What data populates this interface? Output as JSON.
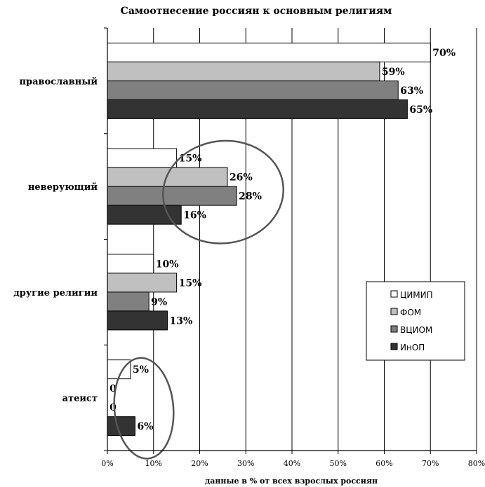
{
  "chart_data": {
    "type": "bar",
    "orientation": "horizontal",
    "title": "Самоотнесение россиян к основным религиям",
    "xlabel": "данные в % от всех взрослых россиян",
    "ylabel": "",
    "xlim": [
      0,
      80
    ],
    "x_ticks": [
      "0%",
      "10%",
      "20%",
      "30%",
      "40%",
      "50%",
      "60%",
      "70%",
      "80%"
    ],
    "grid": true,
    "legend_position": "right",
    "categories": [
      "православный",
      "неверующий",
      "другие религии",
      "атеист"
    ],
    "series": [
      {
        "name": "ЦИМИП",
        "color": "#ffffff",
        "values": [
          70,
          15,
          10,
          5
        ],
        "labels": [
          "70%",
          "15%",
          "10%",
          "5%"
        ]
      },
      {
        "name": "ФОМ",
        "color": "#c0c0c0",
        "values": [
          59,
          26,
          15,
          0
        ],
        "labels": [
          "59%",
          "26%",
          "15%",
          "0"
        ]
      },
      {
        "name": "ВЦИОМ",
        "color": "#808080",
        "values": [
          63,
          28,
          9,
          0
        ],
        "labels": [
          "63%",
          "28%",
          "9%",
          "0"
        ]
      },
      {
        "name": "ИнОП",
        "color": "#333333",
        "values": [
          65,
          16,
          13,
          6
        ],
        "labels": [
          "65%",
          "16%",
          "13%",
          "6%"
        ]
      }
    ],
    "annotations": [
      {
        "type": "ellipse",
        "target": "неверующий",
        "color": "#555555"
      },
      {
        "type": "ellipse",
        "target": "атеист",
        "color": "#555555"
      }
    ]
  }
}
